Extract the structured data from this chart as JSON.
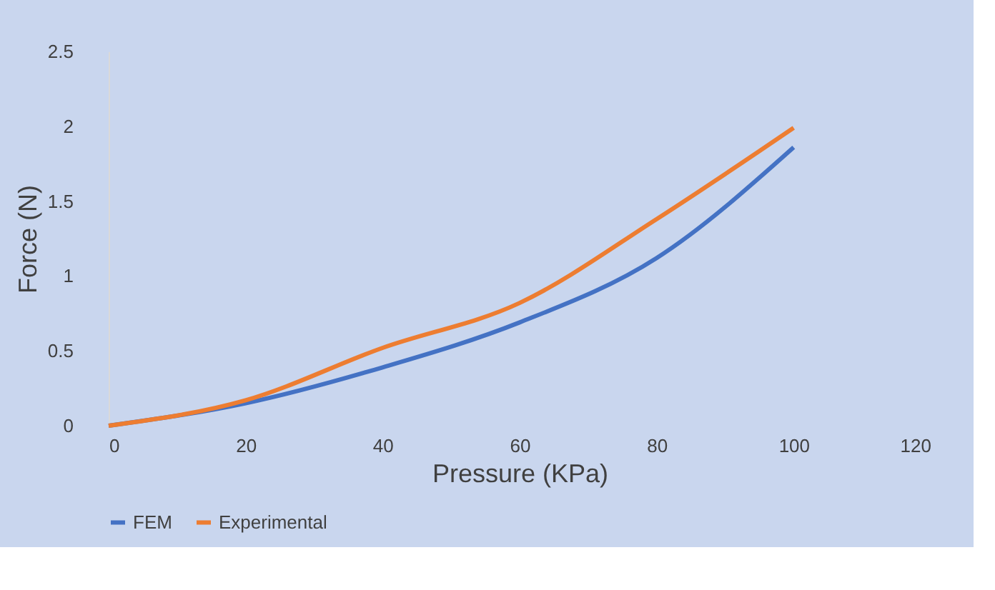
{
  "chart_data": {
    "type": "line",
    "xlabel": "Pressure (KPa)",
    "ylabel": "Force (N)",
    "x": [
      0,
      20,
      40,
      60,
      80,
      100
    ],
    "series": [
      {
        "name": "FEM",
        "color": "#4472c4",
        "values": [
          0,
          0.15,
          0.39,
          0.69,
          1.12,
          1.86
        ]
      },
      {
        "name": "Experimental",
        "color": "#ed7d31",
        "values": [
          0,
          0.17,
          0.52,
          0.82,
          1.38,
          1.99
        ]
      }
    ],
    "xlim": [
      0,
      120
    ],
    "xticks": [
      0,
      20,
      40,
      60,
      80,
      100,
      120
    ],
    "ylim": [
      0,
      2.5
    ],
    "yticks": [
      0,
      0.5,
      1,
      1.5,
      2,
      2.5
    ],
    "grid": false,
    "legend": "bottom",
    "marker": "none",
    "line_style": "solid"
  }
}
